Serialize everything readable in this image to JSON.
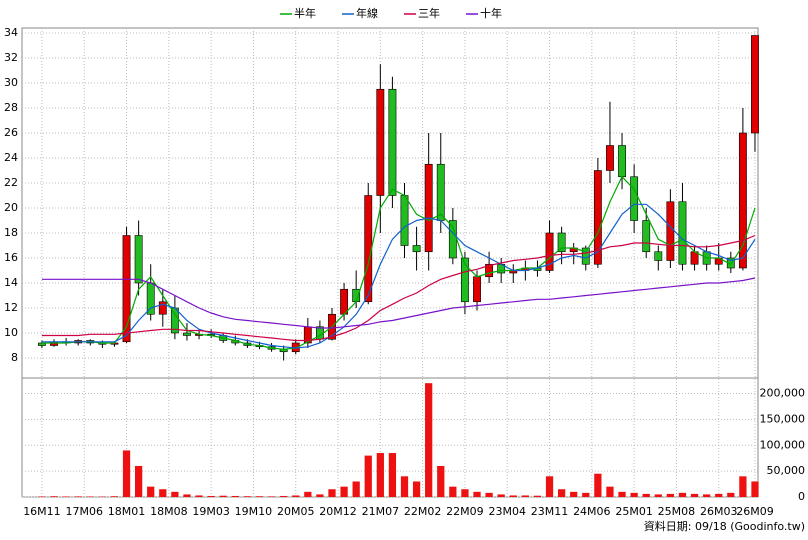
{
  "chart_data": {
    "type": "candlestick",
    "legend": [
      "半年",
      "年線",
      "三年",
      "十年"
    ],
    "footer": "資料日期: 09/18  (Goodinfo.tw)",
    "x": [
      0,
      2,
      4,
      6,
      8,
      10,
      12,
      14,
      16,
      18,
      20,
      22,
      24,
      26,
      28,
      30,
      32,
      34,
      36,
      38,
      40,
      42,
      44,
      46,
      48,
      50,
      52,
      54,
      56,
      58,
      60,
      62,
      64,
      66,
      68,
      70,
      72,
      74,
      76,
      78,
      80,
      82,
      84,
      86,
      88,
      90,
      92,
      94,
      96,
      98,
      100,
      102,
      104,
      106,
      108,
      110,
      112,
      114,
      116,
      118
    ],
    "open": [
      9.2,
      9.0,
      9.3,
      9.2,
      9.4,
      9.2,
      9.1,
      9.3,
      17.8,
      14.0,
      11.5,
      12.0,
      10.0,
      9.8,
      9.9,
      9.8,
      9.4,
      9.2,
      9.0,
      8.9,
      8.7,
      8.5,
      9.2,
      10.5,
      9.5,
      11.5,
      13.5,
      12.5,
      21.0,
      29.5,
      21.0,
      17.0,
      16.5,
      23.5,
      19.0,
      16.0,
      12.5,
      14.5,
      15.5,
      14.8,
      15.0,
      15.2,
      15.0,
      18.0,
      16.5,
      16.8,
      15.5,
      23.0,
      25.0,
      22.5,
      19.0,
      16.5,
      15.8,
      20.5,
      15.5,
      16.5,
      15.5,
      16.0,
      15.2,
      26.0
    ],
    "high": [
      9.4,
      9.5,
      9.6,
      9.5,
      9.5,
      9.4,
      9.3,
      18.5,
      19.0,
      15.5,
      13.5,
      13.0,
      10.8,
      10.2,
      10.3,
      10.0,
      9.8,
      9.5,
      9.3,
      9.2,
      9.0,
      9.5,
      11.2,
      11.0,
      12.0,
      14.0,
      15.0,
      22.0,
      31.5,
      30.5,
      22.0,
      18.5,
      26.0,
      26.0,
      20.0,
      16.5,
      15.0,
      16.5,
      16.0,
      15.5,
      15.8,
      15.8,
      19.0,
      18.5,
      17.2,
      17.0,
      24.0,
      28.5,
      26.0,
      23.5,
      20.0,
      17.0,
      21.5,
      22.0,
      17.0,
      17.0,
      17.2,
      16.5,
      28.0,
      33.8
    ],
    "low": [
      8.8,
      8.9,
      9.0,
      9.0,
      9.0,
      8.8,
      8.9,
      9.2,
      13.0,
      11.0,
      10.5,
      9.5,
      9.4,
      9.5,
      9.6,
      9.2,
      9.0,
      8.8,
      8.7,
      8.5,
      7.8,
      8.3,
      8.8,
      9.2,
      9.4,
      11.0,
      12.0,
      12.3,
      18.0,
      20.0,
      16.0,
      15.0,
      15.0,
      18.0,
      15.5,
      11.5,
      11.8,
      14.0,
      14.0,
      14.0,
      14.2,
      14.5,
      14.8,
      15.5,
      15.5,
      15.0,
      15.2,
      22.0,
      21.5,
      18.0,
      16.0,
      15.0,
      15.2,
      15.0,
      15.0,
      15.0,
      15.0,
      14.8,
      15.0,
      24.5
    ],
    "close": [
      9.0,
      9.3,
      9.2,
      9.4,
      9.2,
      9.1,
      9.2,
      17.8,
      14.0,
      11.5,
      12.5,
      10.0,
      9.8,
      9.9,
      9.8,
      9.4,
      9.2,
      9.0,
      8.9,
      8.7,
      8.5,
      9.2,
      10.5,
      9.5,
      11.5,
      13.5,
      12.5,
      21.0,
      29.5,
      21.0,
      17.0,
      16.5,
      23.5,
      19.0,
      16.0,
      12.5,
      14.5,
      15.5,
      14.8,
      15.0,
      15.2,
      15.0,
      18.0,
      16.5,
      16.8,
      15.5,
      23.0,
      25.0,
      22.5,
      19.0,
      16.5,
      15.8,
      20.5,
      15.5,
      16.5,
      15.5,
      16.0,
      15.2,
      26.0,
      33.8
    ],
    "volume": [
      1000,
      1500,
      1000,
      1200,
      1000,
      800,
      1500,
      90000,
      60000,
      20000,
      15000,
      10000,
      5000,
      3000,
      2000,
      2500,
      2000,
      1500,
      1500,
      1200,
      2000,
      3000,
      10000,
      5000,
      15000,
      20000,
      30000,
      80000,
      85000,
      85000,
      40000,
      30000,
      220000,
      60000,
      20000,
      15000,
      10000,
      8000,
      5000,
      3000,
      3000,
      2500,
      40000,
      15000,
      10000,
      8000,
      45000,
      20000,
      10000,
      8000,
      6000,
      5000,
      6000,
      8000,
      6000,
      5000,
      6000,
      8000,
      40000,
      30000
    ],
    "up_color": "#e00000",
    "down_color": "#22bb22",
    "volume_color": "#ee1111",
    "lines": [
      {
        "name": "半年",
        "color": "#00aa00",
        "values": [
          9.2,
          9.2,
          9.2,
          9.3,
          9.3,
          9.2,
          9.2,
          10.5,
          13.5,
          14.5,
          13.0,
          11.5,
          10.2,
          9.9,
          9.8,
          9.6,
          9.4,
          9.1,
          9.0,
          8.8,
          8.7,
          8.8,
          9.3,
          9.8,
          10.5,
          11.5,
          12.5,
          15.5,
          20.0,
          21.5,
          21.0,
          19.5,
          19.0,
          19.5,
          18.5,
          15.5,
          14.5,
          14.8,
          15.0,
          15.0,
          15.2,
          15.2,
          16.0,
          16.8,
          16.8,
          16.5,
          18.0,
          20.5,
          22.5,
          21.5,
          19.5,
          17.5,
          17.0,
          17.5,
          16.5,
          16.0,
          16.0,
          15.5,
          17.0,
          20.0
        ]
      },
      {
        "name": "年線",
        "color": "#1060d0",
        "values": [
          9.3,
          9.3,
          9.3,
          9.3,
          9.3,
          9.3,
          9.3,
          9.8,
          11.0,
          12.0,
          12.3,
          12.0,
          11.0,
          10.3,
          10.0,
          9.8,
          9.6,
          9.4,
          9.2,
          9.0,
          8.9,
          8.8,
          8.9,
          9.2,
          9.8,
          10.5,
          11.5,
          13.0,
          15.5,
          17.5,
          18.5,
          19.0,
          19.2,
          19.0,
          18.0,
          17.0,
          16.5,
          16.0,
          15.5,
          15.0,
          15.0,
          15.2,
          15.5,
          16.0,
          16.2,
          16.0,
          16.5,
          18.0,
          19.5,
          20.3,
          20.3,
          19.5,
          18.5,
          17.5,
          17.0,
          16.5,
          16.2,
          15.8,
          16.0,
          17.5
        ]
      },
      {
        "name": "三年",
        "color": "#cc0044",
        "values": [
          9.8,
          9.8,
          9.8,
          9.8,
          9.9,
          9.9,
          9.9,
          10.0,
          10.1,
          10.2,
          10.3,
          10.3,
          10.2,
          10.2,
          10.1,
          10.0,
          9.9,
          9.8,
          9.7,
          9.6,
          9.5,
          9.4,
          9.4,
          9.5,
          9.7,
          10.0,
          10.4,
          11.0,
          11.8,
          12.3,
          12.8,
          13.2,
          13.8,
          14.3,
          14.6,
          14.9,
          15.1,
          15.4,
          15.6,
          15.8,
          15.9,
          16.0,
          16.2,
          16.3,
          16.3,
          16.4,
          16.6,
          16.9,
          17.0,
          17.2,
          17.2,
          17.1,
          17.0,
          17.0,
          16.9,
          16.9,
          17.0,
          17.2,
          17.4,
          17.8
        ]
      },
      {
        "name": "十年",
        "color": "#7711cc",
        "values": [
          14.3,
          14.3,
          14.3,
          14.3,
          14.3,
          14.3,
          14.3,
          14.3,
          14.3,
          14.0,
          13.5,
          13.0,
          12.5,
          12.0,
          11.6,
          11.3,
          11.1,
          11.0,
          10.9,
          10.8,
          10.7,
          10.6,
          10.5,
          10.4,
          10.4,
          10.5,
          10.6,
          10.7,
          10.9,
          11.0,
          11.2,
          11.4,
          11.6,
          11.8,
          12.0,
          12.1,
          12.2,
          12.3,
          12.4,
          12.5,
          12.6,
          12.7,
          12.7,
          12.8,
          12.9,
          13.0,
          13.1,
          13.2,
          13.3,
          13.4,
          13.5,
          13.6,
          13.7,
          13.8,
          13.9,
          14.0,
          14.0,
          14.1,
          14.2,
          14.4
        ]
      }
    ],
    "xlim": [
      -3.3,
      118.5
    ],
    "xticks": [
      {
        "value": 0,
        "label": "16M11"
      },
      {
        "value": 7,
        "label": "17M06"
      },
      {
        "value": 14,
        "label": "18M01"
      },
      {
        "value": 21,
        "label": "18M08"
      },
      {
        "value": 28,
        "label": "19M03"
      },
      {
        "value": 35,
        "label": "19M10"
      },
      {
        "value": 42,
        "label": "20M05"
      },
      {
        "value": 49,
        "label": "20M12"
      },
      {
        "value": 56,
        "label": "21M07"
      },
      {
        "value": 63,
        "label": "22M02"
      },
      {
        "value": 70,
        "label": "22M09"
      },
      {
        "value": 77,
        "label": "23M04"
      },
      {
        "value": 84,
        "label": "23M11"
      },
      {
        "value": 91,
        "label": "24M06"
      },
      {
        "value": 98,
        "label": "25M01"
      },
      {
        "value": 105,
        "label": "25M08"
      },
      {
        "value": 112,
        "label": "26M03"
      },
      {
        "value": 118,
        "label": "26M09"
      }
    ],
    "ylim": [
      6.4,
      34.4
    ],
    "yticks": [
      8,
      10,
      12,
      14,
      16,
      18,
      20,
      22,
      24,
      26,
      28,
      30,
      32,
      34
    ],
    "y2lim": [
      0,
      230000
    ],
    "y2ticks": [
      0,
      {
        "value": 50000,
        "label": "50,000"
      },
      {
        "value": 100000,
        "label": "100,000"
      },
      {
        "value": 150000,
        "label": "150,000"
      },
      {
        "value": 200000,
        "label": "200,000"
      }
    ],
    "grid": true
  }
}
